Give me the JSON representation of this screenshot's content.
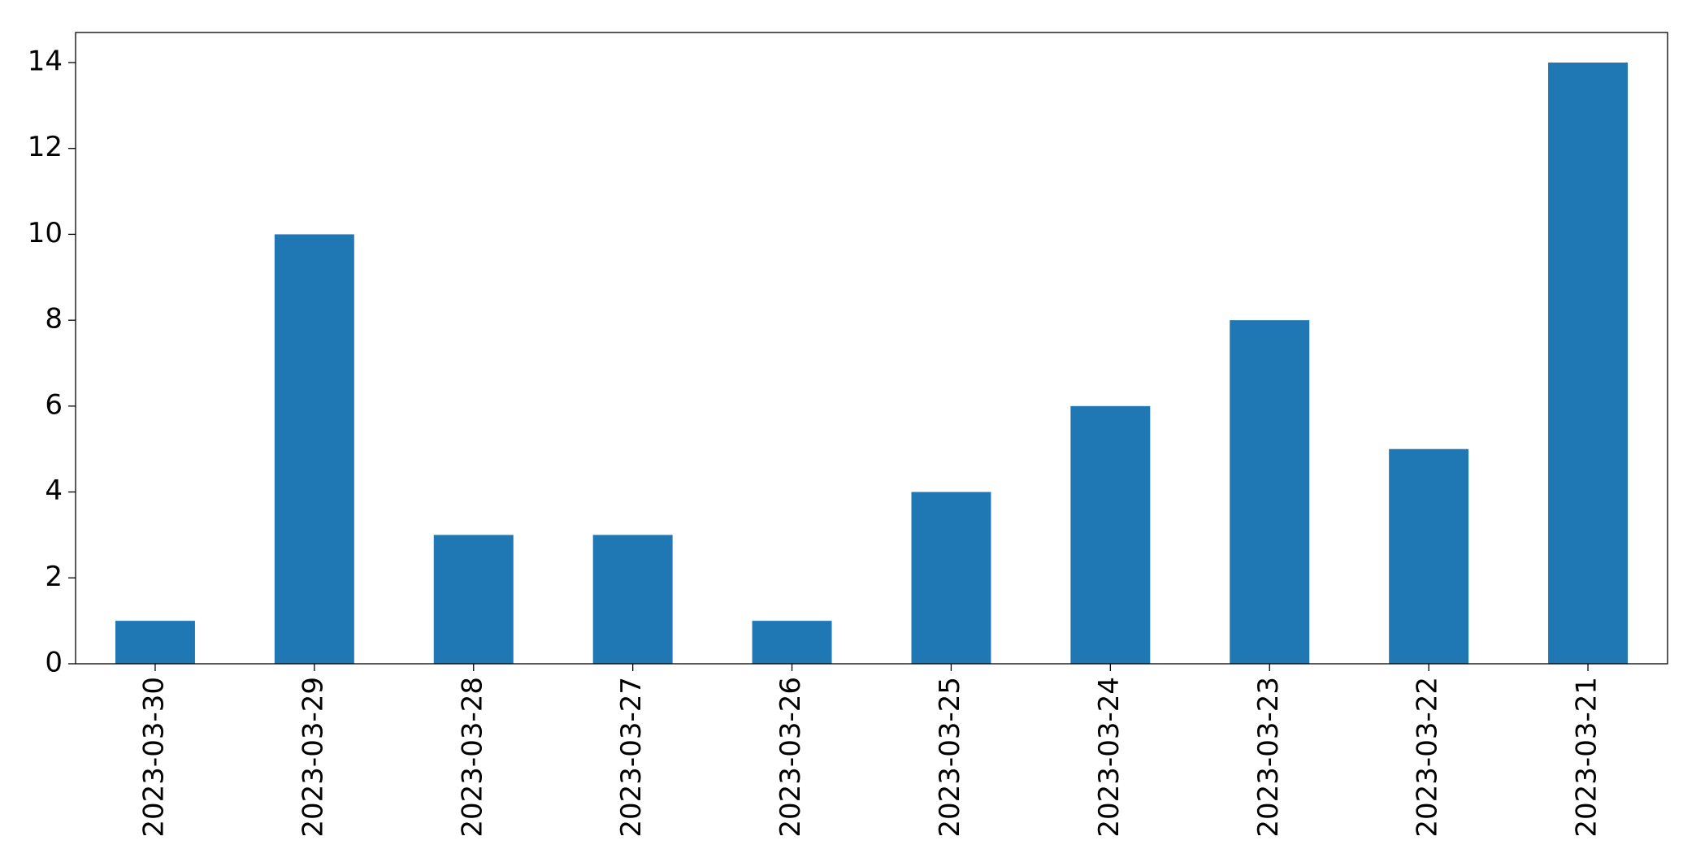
{
  "chart_data": {
    "type": "bar",
    "categories": [
      "2023-03-30",
      "2023-03-29",
      "2023-03-28",
      "2023-03-27",
      "2023-03-26",
      "2023-03-25",
      "2023-03-24",
      "2023-03-23",
      "2023-03-22",
      "2023-03-21"
    ],
    "values": [
      1,
      10,
      3,
      3,
      1,
      4,
      6,
      8,
      5,
      14
    ],
    "color": "#1f77b4",
    "ylim": [
      0,
      14.7
    ],
    "yticks": [
      0,
      2,
      4,
      6,
      8,
      10,
      12,
      14
    ],
    "grid": false
  }
}
